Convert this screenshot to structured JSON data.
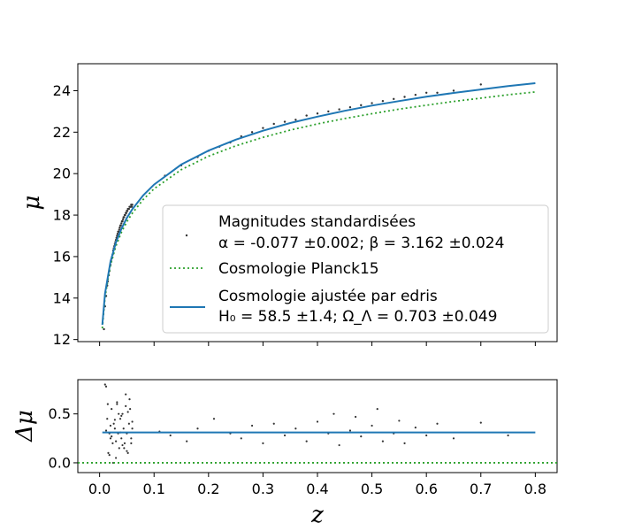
{
  "chart_data": [
    {
      "type": "scatter",
      "ylabel": "μ",
      "xlim": [
        -0.04,
        0.84
      ],
      "ylim": [
        11.9,
        25.3
      ],
      "xticks": [
        0.0,
        0.1,
        0.2,
        0.3,
        0.4,
        0.5,
        0.6,
        0.7,
        0.8
      ],
      "yticks": [
        12,
        14,
        16,
        18,
        20,
        22,
        24
      ],
      "ytick_labels": [
        "12",
        "14",
        "16",
        "18",
        "20",
        "22",
        "24"
      ],
      "grid": false,
      "legend_position": "lower-right",
      "legend": [
        {
          "label_line1": "Magnitudes standardisées",
          "label_line2": "α = -0.077 ±0.002; β =  3.162 ±0.024",
          "marker": "point",
          "color": "#333333"
        },
        {
          "label_line1": "Cosmologie Planck15",
          "marker": "dotted-line",
          "color": "#2ca02c"
        },
        {
          "label_line1": "Cosmologie ajustée par edris",
          "label_line2": "H₀ = 58.5 ±1.4; Ω_Λ =  0.703 ±0.049",
          "marker": "solid-line",
          "color": "#1f77b4"
        }
      ],
      "series": [
        {
          "name": "Magnitudes standardisées",
          "kind": "scatter",
          "color": "#333333",
          "x": [
            0.008,
            0.01,
            0.012,
            0.014,
            0.015,
            0.017,
            0.018,
            0.02,
            0.021,
            0.022,
            0.024,
            0.025,
            0.026,
            0.027,
            0.028,
            0.029,
            0.03,
            0.031,
            0.032,
            0.033,
            0.034,
            0.035,
            0.036,
            0.037,
            0.038,
            0.039,
            0.04,
            0.041,
            0.042,
            0.043,
            0.044,
            0.045,
            0.046,
            0.047,
            0.048,
            0.049,
            0.05,
            0.051,
            0.052,
            0.053,
            0.054,
            0.055,
            0.056,
            0.057,
            0.058,
            0.059,
            0.06,
            0.12,
            0.15,
            0.18,
            0.2,
            0.22,
            0.24,
            0.26,
            0.28,
            0.3,
            0.32,
            0.34,
            0.36,
            0.38,
            0.4,
            0.42,
            0.44,
            0.46,
            0.48,
            0.5,
            0.52,
            0.54,
            0.56,
            0.58,
            0.6,
            0.62,
            0.65,
            0.7
          ],
          "y": [
            12.5,
            13.6,
            14.1,
            14.6,
            14.8,
            15.1,
            15.3,
            15.6,
            15.8,
            15.9,
            16.1,
            16.3,
            16.4,
            16.5,
            16.6,
            16.7,
            16.8,
            16.9,
            17.0,
            17.1,
            17.2,
            17.2,
            17.3,
            17.4,
            17.5,
            17.5,
            17.6,
            17.7,
            17.7,
            17.8,
            17.9,
            17.9,
            18.0,
            18.0,
            18.1,
            18.1,
            18.2,
            18.2,
            18.3,
            18.3,
            18.3,
            18.4,
            18.4,
            18.4,
            18.5,
            18.4,
            18.5,
            19.9,
            20.4,
            20.8,
            21.1,
            21.3,
            21.5,
            21.8,
            22.0,
            22.2,
            22.4,
            22.5,
            22.6,
            22.8,
            22.9,
            23.0,
            23.1,
            23.2,
            23.3,
            23.4,
            23.5,
            23.6,
            23.7,
            23.8,
            23.9,
            23.9,
            24.0,
            24.3
          ]
        },
        {
          "name": "Cosmologie Planck15",
          "kind": "line",
          "style": "dotted",
          "color": "#2ca02c",
          "x": [
            0.005,
            0.01,
            0.02,
            0.03,
            0.04,
            0.05,
            0.06,
            0.08,
            0.1,
            0.15,
            0.2,
            0.25,
            0.3,
            0.35,
            0.4,
            0.45,
            0.5,
            0.55,
            0.6,
            0.65,
            0.7,
            0.75,
            0.8
          ],
          "y": [
            12.54,
            14.06,
            15.6,
            16.51,
            17.17,
            17.68,
            18.09,
            18.75,
            19.27,
            20.19,
            20.84,
            21.34,
            21.75,
            22.1,
            22.4,
            22.66,
            22.89,
            23.11,
            23.3,
            23.48,
            23.64,
            23.8,
            23.94
          ]
        },
        {
          "name": "Cosmologie ajustée par edris",
          "kind": "line",
          "style": "solid",
          "color": "#1f77b4",
          "x": [
            0.005,
            0.01,
            0.02,
            0.03,
            0.04,
            0.05,
            0.06,
            0.08,
            0.1,
            0.15,
            0.2,
            0.25,
            0.3,
            0.35,
            0.4,
            0.45,
            0.5,
            0.55,
            0.6,
            0.65,
            0.7,
            0.75,
            0.8
          ],
          "y": [
            12.71,
            14.23,
            15.77,
            16.68,
            17.34,
            17.86,
            18.28,
            18.95,
            19.47,
            20.44,
            21.11,
            21.64,
            22.07,
            22.44,
            22.75,
            23.03,
            23.28,
            23.5,
            23.71,
            23.89,
            24.06,
            24.22,
            24.36
          ]
        }
      ]
    },
    {
      "type": "scatter",
      "xlabel": "z",
      "ylabel": "Δμ",
      "xlim": [
        -0.04,
        0.84
      ],
      "ylim": [
        -0.1,
        0.85
      ],
      "xticks": [
        0.0,
        0.1,
        0.2,
        0.3,
        0.4,
        0.5,
        0.6,
        0.7,
        0.8
      ],
      "xtick_labels": [
        "0.0",
        "0.1",
        "0.2",
        "0.3",
        "0.4",
        "0.5",
        "0.6",
        "0.7",
        "0.8"
      ],
      "yticks": [
        0.0,
        0.5
      ],
      "ytick_labels": [
        "0.0",
        "0.5"
      ],
      "grid": false,
      "series": [
        {
          "kind": "scatter",
          "color": "#333333",
          "x": [
            0.01,
            0.012,
            0.014,
            0.016,
            0.018,
            0.02,
            0.022,
            0.024,
            0.026,
            0.028,
            0.03,
            0.032,
            0.034,
            0.036,
            0.038,
            0.04,
            0.042,
            0.044,
            0.046,
            0.048,
            0.05,
            0.052,
            0.054,
            0.056,
            0.058,
            0.06,
            0.015,
            0.025,
            0.035,
            0.045,
            0.055,
            0.02,
            0.03,
            0.04,
            0.05,
            0.06,
            0.012,
            0.022,
            0.032,
            0.042,
            0.052,
            0.018,
            0.028,
            0.038,
            0.048,
            0.058,
            0.11,
            0.13,
            0.16,
            0.18,
            0.21,
            0.24,
            0.26,
            0.28,
            0.3,
            0.32,
            0.34,
            0.36,
            0.38,
            0.4,
            0.42,
            0.43,
            0.44,
            0.46,
            0.47,
            0.48,
            0.5,
            0.51,
            0.52,
            0.54,
            0.55,
            0.56,
            0.58,
            0.6,
            0.62,
            0.65,
            0.7,
            0.75
          ],
          "y": [
            0.8,
            0.78,
            0.45,
            0.1,
            0.3,
            0.25,
            0.55,
            0.2,
            0.4,
            0.35,
            0.05,
            0.6,
            0.3,
            0.15,
            0.45,
            0.25,
            0.5,
            0.35,
            0.2,
            0.7,
            0.3,
            0.1,
            0.4,
            0.55,
            0.25,
            0.35,
            0.6,
            0.0,
            0.5,
            0.15,
            0.65,
            0.38,
            0.22,
            0.48,
            0.12,
            0.42,
            0.33,
            0.27,
            0.62,
            0.18,
            0.52,
            0.08,
            0.44,
            0.31,
            0.58,
            0.2,
            0.32,
            0.28,
            0.22,
            0.35,
            0.45,
            0.3,
            0.25,
            0.38,
            0.2,
            0.4,
            0.28,
            0.35,
            0.22,
            0.42,
            0.3,
            0.5,
            0.18,
            0.33,
            0.47,
            0.27,
            0.38,
            0.55,
            0.22,
            0.3,
            0.43,
            0.2,
            0.36,
            0.28,
            0.4,
            0.25,
            0.41,
            0.28
          ]
        },
        {
          "kind": "line",
          "style": "solid",
          "color": "#1f77b4",
          "x": [
            0.005,
            0.8
          ],
          "y": [
            0.31,
            0.31
          ]
        },
        {
          "kind": "line",
          "style": "dotted",
          "color": "#2ca02c",
          "x": [
            -0.04,
            0.84
          ],
          "y": [
            0.0,
            0.0
          ]
        }
      ]
    }
  ]
}
